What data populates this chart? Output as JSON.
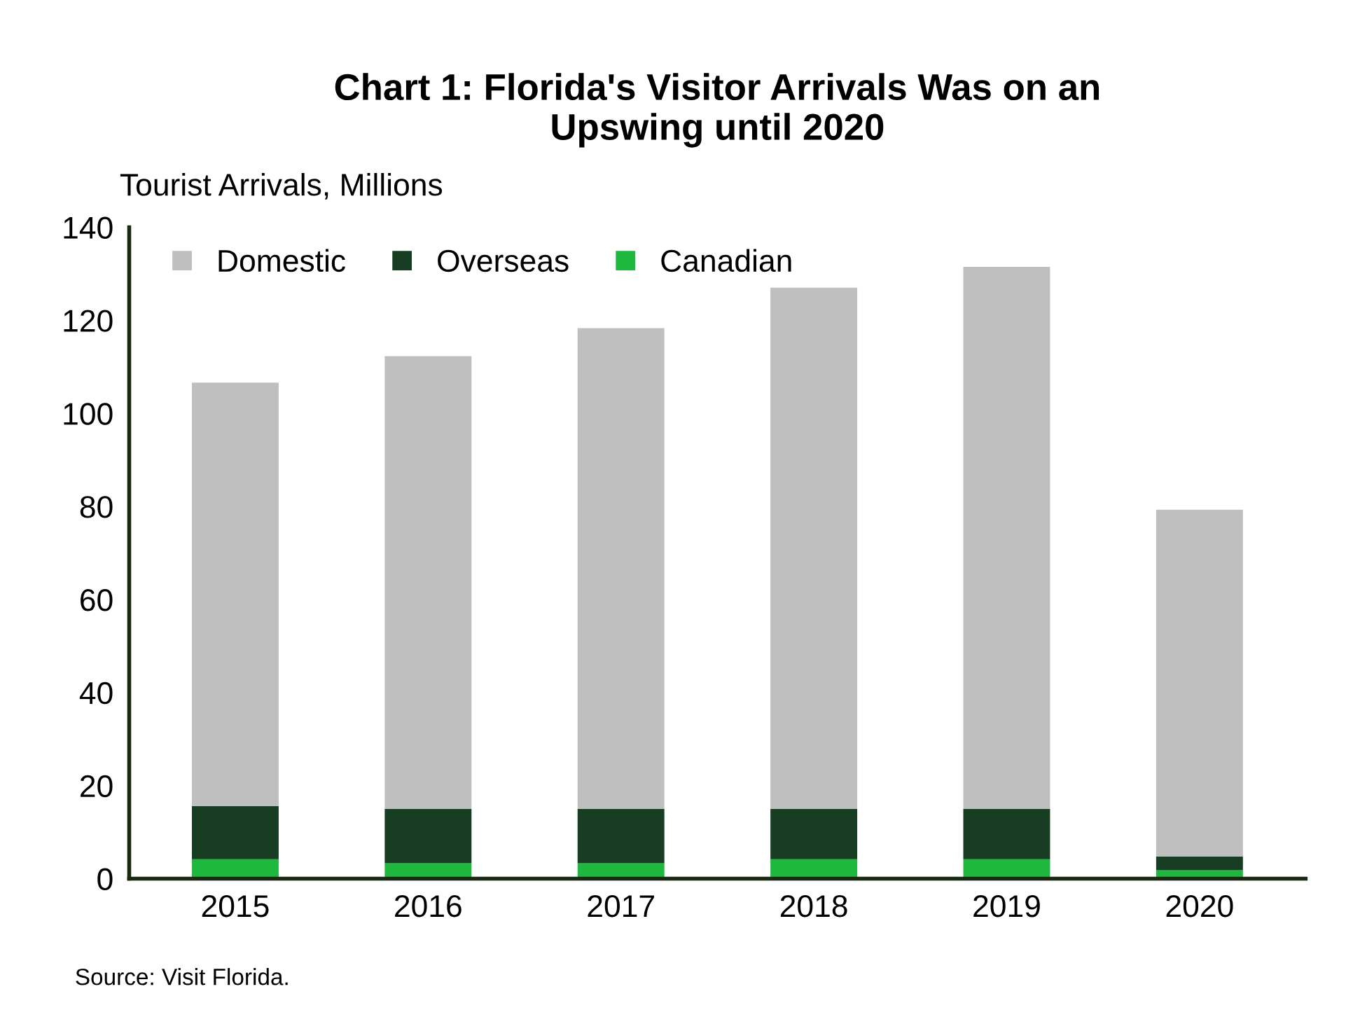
{
  "chart_data": {
    "type": "bar",
    "title": "Chart 1: Florida's Visitor Arrivals Was on an\nUpswing until 2020",
    "ylabel": "Tourist Arrivals, Millions",
    "categories": [
      "2015",
      "2016",
      "2017",
      "2018",
      "2019",
      "2020"
    ],
    "stacked": true,
    "series": [
      {
        "name": "Canadian",
        "color": "#1fb83f",
        "values": [
          4.2,
          3.3,
          3.3,
          4.2,
          4.2,
          1.8
        ]
      },
      {
        "name": "Overseas",
        "color": "#173d22",
        "values": [
          11.4,
          11.7,
          11.7,
          10.8,
          10.8,
          3.0
        ]
      },
      {
        "name": "Domestic",
        "color": "#bfbfbf",
        "values": [
          91.0,
          97.3,
          103.3,
          112.0,
          116.5,
          74.5
        ]
      }
    ],
    "ylim": [
      0,
      140
    ],
    "yticks": [
      0,
      20,
      40,
      60,
      80,
      100,
      120,
      140
    ],
    "grid": false,
    "legend": "top left",
    "annotations": [
      "Source: Visit Florida."
    ]
  }
}
